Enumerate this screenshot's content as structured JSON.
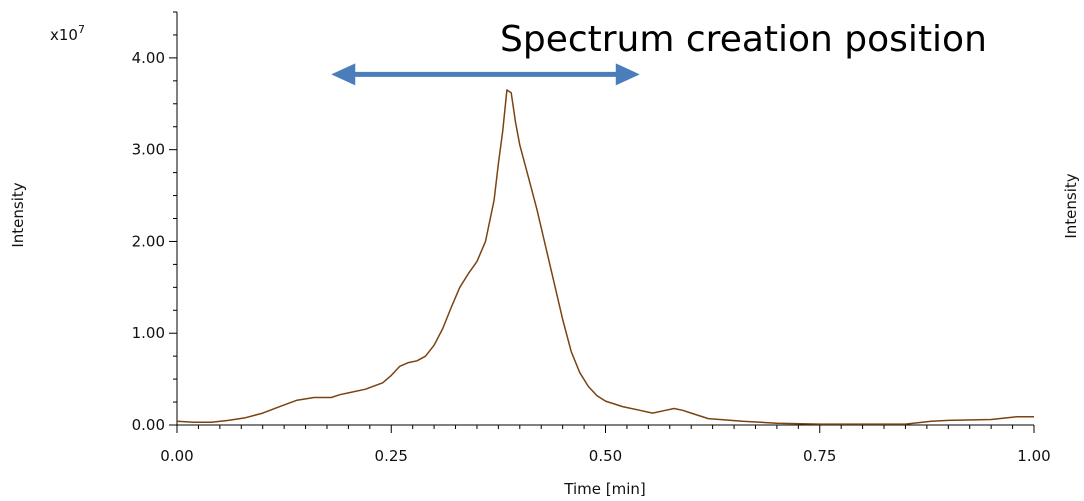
{
  "chart_data": {
    "type": "line",
    "xlabel": "Time [min]",
    "ylabel": "Intensity",
    "right_label": "Intensity",
    "y_multiplier": "x10",
    "y_multiplier_exp": "7",
    "xlim": [
      0,
      1
    ],
    "ylim": [
      0,
      4.5
    ],
    "x_ticks": [
      {
        "value": 0,
        "label": "0.00"
      },
      {
        "value": 0.25,
        "label": "0.25"
      },
      {
        "value": 0.5,
        "label": "0.50"
      },
      {
        "value": 0.75,
        "label": "0.75"
      },
      {
        "value": 1,
        "label": "1.00"
      }
    ],
    "y_ticks": [
      {
        "value": 0,
        "label": "0.00"
      },
      {
        "value": 1,
        "label": "1.00"
      },
      {
        "value": 2,
        "label": "2.00"
      },
      {
        "value": 3,
        "label": "3.00"
      },
      {
        "value": 4,
        "label": "4.00"
      }
    ],
    "series": [
      {
        "color": "#7a4312",
        "x": [
          0,
          0.02,
          0.04,
          0.06,
          0.08,
          0.1,
          0.12,
          0.14,
          0.16,
          0.18,
          0.19,
          0.2,
          0.22,
          0.24,
          0.25,
          0.26,
          0.27,
          0.28,
          0.29,
          0.3,
          0.31,
          0.32,
          0.33,
          0.34,
          0.35,
          0.36,
          0.37,
          0.375,
          0.38,
          0.385,
          0.39,
          0.395,
          0.4,
          0.41,
          0.42,
          0.43,
          0.44,
          0.45,
          0.46,
          0.47,
          0.48,
          0.49,
          0.5,
          0.52,
          0.54,
          0.555,
          0.57,
          0.58,
          0.59,
          0.6,
          0.62,
          0.66,
          0.7,
          0.75,
          0.8,
          0.85,
          0.88,
          0.9,
          0.95,
          0.98,
          1.0
        ],
        "y": [
          0.04,
          0.03,
          0.03,
          0.05,
          0.08,
          0.13,
          0.2,
          0.27,
          0.3,
          0.3,
          0.33,
          0.35,
          0.39,
          0.46,
          0.54,
          0.64,
          0.68,
          0.7,
          0.75,
          0.87,
          1.05,
          1.28,
          1.5,
          1.65,
          1.78,
          2.0,
          2.45,
          2.85,
          3.2,
          3.65,
          3.62,
          3.3,
          3.05,
          2.7,
          2.35,
          1.95,
          1.55,
          1.15,
          0.8,
          0.57,
          0.42,
          0.32,
          0.26,
          0.2,
          0.16,
          0.13,
          0.16,
          0.18,
          0.16,
          0.13,
          0.07,
          0.04,
          0.02,
          0.01,
          0.01,
          0.01,
          0.04,
          0.05,
          0.06,
          0.09,
          0.09
        ]
      }
    ],
    "annotations": [
      {
        "text": "Spectrum creation position"
      }
    ],
    "arrow": {
      "x_start": 0.18,
      "x_end": 0.54,
      "y": 3.82,
      "color": "#4a7ebb"
    },
    "grid": false
  }
}
